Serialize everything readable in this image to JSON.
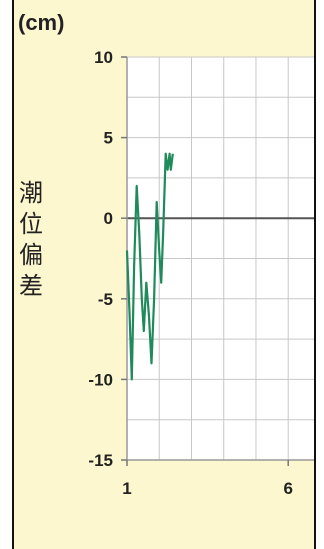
{
  "chart_data": {
    "type": "line",
    "unit_label": "(cm)",
    "ylabel_chars": [
      "潮",
      "位",
      "偏",
      "差"
    ],
    "ylim": [
      -15,
      10
    ],
    "yticks": [
      10,
      5,
      0,
      -5,
      -10,
      -15
    ],
    "xlim": [
      1,
      6.8
    ],
    "xticks": [
      1,
      6
    ],
    "grid": true,
    "colors": {
      "series": "#1f8a5a",
      "zero_line": "#555555",
      "grid": "#c8c8c8",
      "plot_bg": "#ffffff"
    },
    "series": [
      {
        "values": [
          {
            "x": 1.0,
            "y": -2
          },
          {
            "x": 1.08,
            "y": -6
          },
          {
            "x": 1.15,
            "y": -10
          },
          {
            "x": 1.22,
            "y": -3
          },
          {
            "x": 1.3,
            "y": 2
          },
          {
            "x": 1.38,
            "y": -1
          },
          {
            "x": 1.46,
            "y": -5
          },
          {
            "x": 1.52,
            "y": -7
          },
          {
            "x": 1.6,
            "y": -4
          },
          {
            "x": 1.68,
            "y": -6
          },
          {
            "x": 1.76,
            "y": -9
          },
          {
            "x": 1.84,
            "y": -5
          },
          {
            "x": 1.92,
            "y": 1
          },
          {
            "x": 2.0,
            "y": -2
          },
          {
            "x": 2.06,
            "y": -4
          },
          {
            "x": 2.12,
            "y": -1
          },
          {
            "x": 2.2,
            "y": 4
          },
          {
            "x": 2.26,
            "y": 3
          },
          {
            "x": 2.32,
            "y": 4
          },
          {
            "x": 2.36,
            "y": 3
          },
          {
            "x": 2.42,
            "y": 4
          }
        ]
      }
    ]
  }
}
